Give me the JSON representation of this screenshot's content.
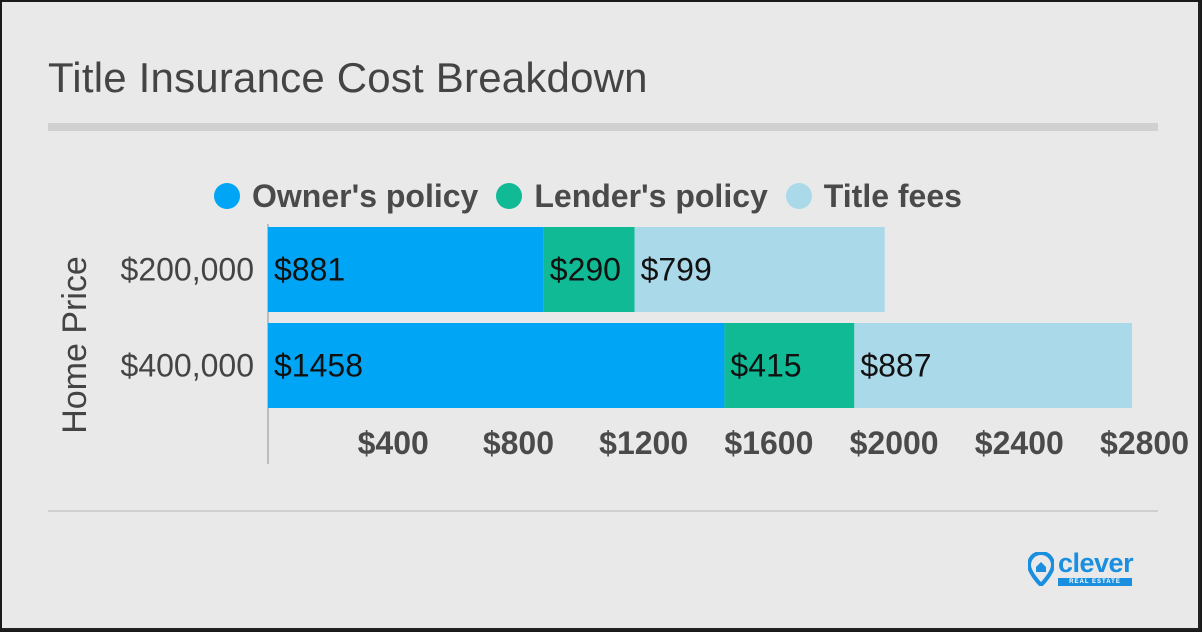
{
  "title": "Title Insurance Cost Breakdown",
  "legend": [
    {
      "label": "Owner's policy",
      "color": "#00a6f5"
    },
    {
      "label": "Lender's policy",
      "color": "#0fba94"
    },
    {
      "label": "Title fees",
      "color": "#aad9ea"
    }
  ],
  "logo": {
    "name": "clever",
    "tagline": "REAL ESTATE"
  },
  "chart_data": {
    "type": "bar",
    "orientation": "horizontal",
    "stacked": true,
    "title": "",
    "xlabel": "",
    "ylabel": "Home Price",
    "categories": [
      "$200,000",
      "$400,000"
    ],
    "series": [
      {
        "name": "Owner's policy",
        "color": "#00a6f5",
        "values": [
          881,
          1458
        ],
        "labels": [
          "$881",
          "$1458"
        ]
      },
      {
        "name": "Lender's policy",
        "color": "#0fba94",
        "values": [
          290,
          415
        ],
        "labels": [
          "$290",
          "$415"
        ]
      },
      {
        "name": "Title fees",
        "color": "#aad9ea",
        "values": [
          799,
          887
        ],
        "labels": [
          "$799",
          "$887"
        ]
      }
    ],
    "xticks": [
      400,
      800,
      1200,
      1600,
      2000,
      2400,
      2800
    ],
    "xtick_labels": [
      "$400",
      "$800",
      "$1200",
      "$1600",
      "$2000",
      "$2400",
      "$2800"
    ],
    "xlim": [
      0,
      2760
    ],
    "grid": false,
    "legend_position": "top"
  }
}
